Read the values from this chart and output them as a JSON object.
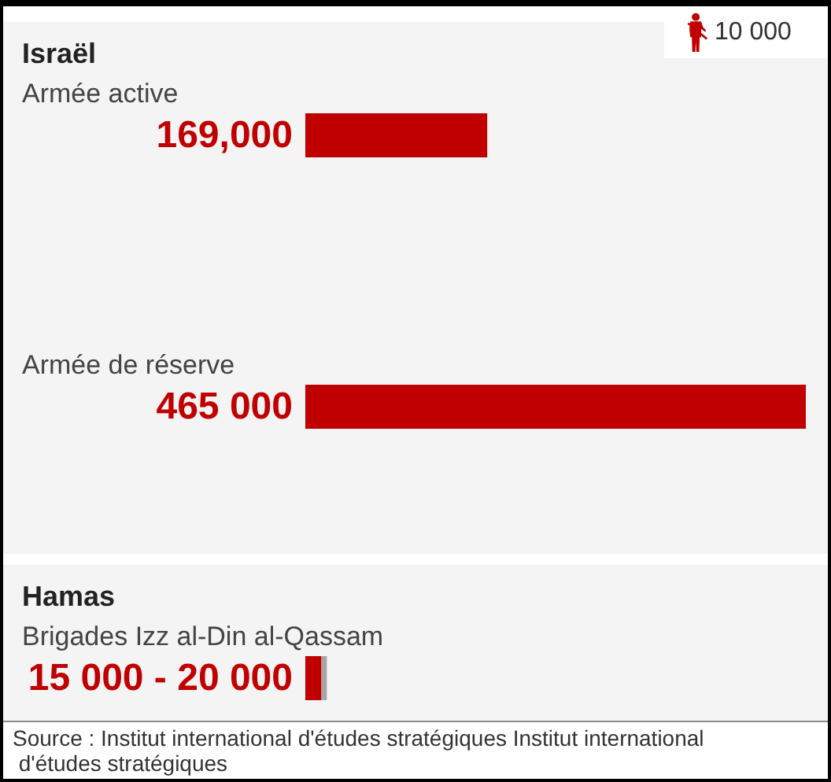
{
  "chart_data": {
    "type": "bar",
    "orientation": "horizontal",
    "stacked": true,
    "categories": [
      "Armée active",
      "Armée de réserve",
      "Brigades Izz al-Din al-Qassam"
    ],
    "series": [
      {
        "color": "#c00000",
        "values": [
          169000,
          465000,
          15000
        ],
        "value_labels": [
          "169,000",
          "465 000",
          "15 000 - 20 000"
        ]
      },
      {
        "color": "#a6a6a6",
        "values": [
          null,
          null,
          5000
        ]
      }
    ],
    "tick_labels": "y",
    "annotations": [
      "Israël",
      "Hamas",
      "10 000",
      "Source : Institut international d'études stratégiques Institut international d'études stratégiques"
    ]
  }
}
